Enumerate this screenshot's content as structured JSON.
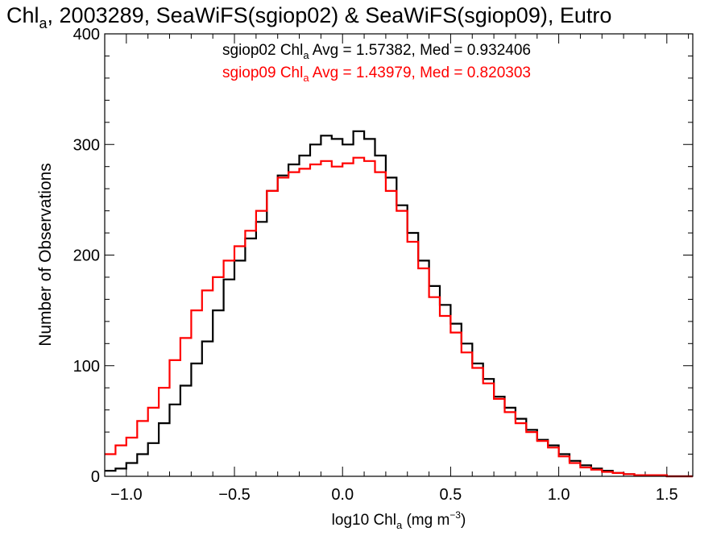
{
  "chart_data": {
    "type": "line",
    "style": "step-histogram",
    "title": {
      "prefix": "Chl",
      "prefix_sub": "a",
      "rest": ", 2003289, SeaWiFS(sgiop02) & SeaWiFS(sgiop09), Eutro"
    },
    "xlabel": {
      "main": "log10 Chl",
      "sub": "a",
      "unit_pre": " (mg m",
      "unit_sup": "−3",
      "unit_post": ")"
    },
    "ylabel": "Number of Observations",
    "xlim": [
      -1.1,
      1.62
    ],
    "ylim": [
      0,
      400
    ],
    "xticks": [
      -1.0,
      -0.5,
      0.0,
      0.5,
      1.0,
      1.5
    ],
    "xtick_labels": [
      "−1.0",
      "−0.5",
      "0.0",
      "0.5",
      "1.0",
      "1.5"
    ],
    "yticks": [
      0,
      100,
      200,
      300,
      400
    ],
    "ytick_labels": [
      "0",
      "100",
      "200",
      "300",
      "400"
    ],
    "grid": false,
    "annotations": [
      {
        "pre": "sgiop02 Chl",
        "sub": "a",
        "post": " Avg = 1.57382, Med = 0.932406",
        "color": "#000000"
      },
      {
        "pre": "sgiop09 Chl",
        "sub": "a",
        "post": " Avg = 1.43979, Med = 0.820303",
        "color": "#ff0000"
      }
    ],
    "series": [
      {
        "color": "#000000",
        "points": [
          [
            -1.1,
            5
          ],
          [
            -1.05,
            7
          ],
          [
            -1.0,
            12
          ],
          [
            -0.95,
            20
          ],
          [
            -0.9,
            30
          ],
          [
            -0.85,
            48
          ],
          [
            -0.8,
            65
          ],
          [
            -0.75,
            82
          ],
          [
            -0.7,
            102
          ],
          [
            -0.65,
            122
          ],
          [
            -0.6,
            150
          ],
          [
            -0.55,
            178
          ],
          [
            -0.5,
            195
          ],
          [
            -0.45,
            215
          ],
          [
            -0.4,
            230
          ],
          [
            -0.35,
            258
          ],
          [
            -0.3,
            272
          ],
          [
            -0.25,
            282
          ],
          [
            -0.2,
            290
          ],
          [
            -0.15,
            300
          ],
          [
            -0.1,
            308
          ],
          [
            -0.05,
            305
          ],
          [
            0.0,
            300
          ],
          [
            0.05,
            312
          ],
          [
            0.1,
            305
          ],
          [
            0.15,
            290
          ],
          [
            0.2,
            270
          ],
          [
            0.25,
            245
          ],
          [
            0.3,
            220
          ],
          [
            0.35,
            195
          ],
          [
            0.4,
            172
          ],
          [
            0.45,
            155
          ],
          [
            0.5,
            138
          ],
          [
            0.55,
            120
          ],
          [
            0.6,
            102
          ],
          [
            0.65,
            88
          ],
          [
            0.7,
            72
          ],
          [
            0.75,
            62
          ],
          [
            0.8,
            52
          ],
          [
            0.85,
            42
          ],
          [
            0.9,
            33
          ],
          [
            0.95,
            28
          ],
          [
            1.0,
            20
          ],
          [
            1.05,
            14
          ],
          [
            1.1,
            10
          ],
          [
            1.15,
            7
          ],
          [
            1.2,
            5
          ],
          [
            1.25,
            3
          ],
          [
            1.3,
            2
          ],
          [
            1.35,
            1
          ],
          [
            1.4,
            1
          ],
          [
            1.5,
            0
          ],
          [
            1.6,
            0
          ]
        ]
      },
      {
        "color": "#ff0000",
        "points": [
          [
            -1.1,
            20
          ],
          [
            -1.05,
            28
          ],
          [
            -1.0,
            35
          ],
          [
            -0.95,
            50
          ],
          [
            -0.9,
            62
          ],
          [
            -0.85,
            80
          ],
          [
            -0.8,
            105
          ],
          [
            -0.75,
            125
          ],
          [
            -0.7,
            150
          ],
          [
            -0.65,
            168
          ],
          [
            -0.6,
            180
          ],
          [
            -0.55,
            195
          ],
          [
            -0.5,
            208
          ],
          [
            -0.45,
            222
          ],
          [
            -0.4,
            240
          ],
          [
            -0.35,
            258
          ],
          [
            -0.3,
            270
          ],
          [
            -0.25,
            275
          ],
          [
            -0.2,
            278
          ],
          [
            -0.15,
            282
          ],
          [
            -0.1,
            285
          ],
          [
            -0.05,
            280
          ],
          [
            0.0,
            283
          ],
          [
            0.05,
            288
          ],
          [
            0.1,
            285
          ],
          [
            0.15,
            275
          ],
          [
            0.2,
            258
          ],
          [
            0.25,
            240
          ],
          [
            0.3,
            212
          ],
          [
            0.35,
            188
          ],
          [
            0.4,
            162
          ],
          [
            0.45,
            145
          ],
          [
            0.5,
            130
          ],
          [
            0.55,
            112
          ],
          [
            0.6,
            98
          ],
          [
            0.65,
            84
          ],
          [
            0.7,
            70
          ],
          [
            0.75,
            58
          ],
          [
            0.8,
            48
          ],
          [
            0.85,
            40
          ],
          [
            0.9,
            32
          ],
          [
            0.95,
            26
          ],
          [
            1.0,
            18
          ],
          [
            1.05,
            12
          ],
          [
            1.1,
            8
          ],
          [
            1.15,
            6
          ],
          [
            1.2,
            4
          ],
          [
            1.25,
            3
          ],
          [
            1.3,
            2
          ],
          [
            1.35,
            1
          ],
          [
            1.4,
            1
          ],
          [
            1.5,
            0
          ],
          [
            1.6,
            0
          ]
        ]
      }
    ]
  }
}
